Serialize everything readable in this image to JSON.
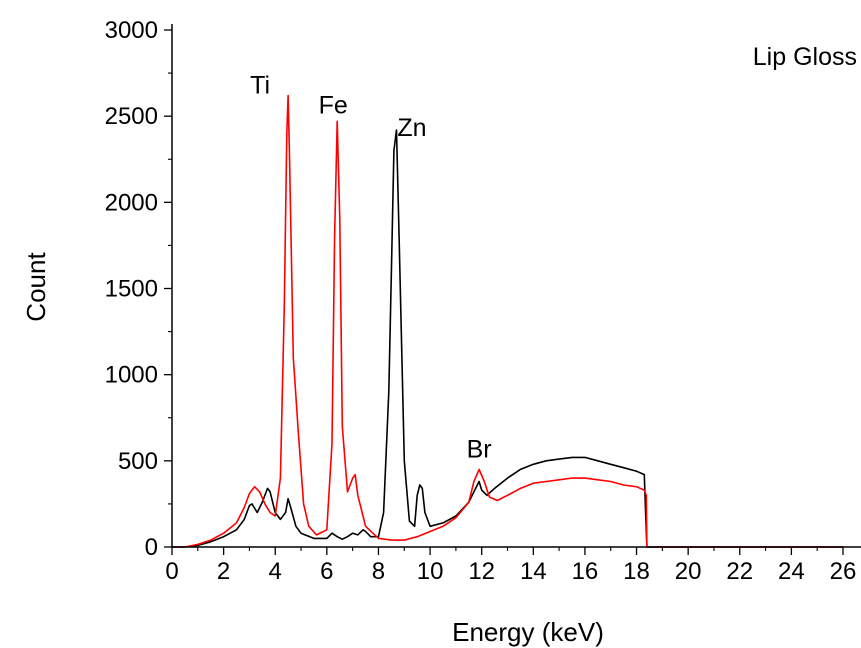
{
  "chart_data": {
    "type": "line",
    "title": "",
    "annotation_text": "Lip Gloss",
    "xlabel": "Energy (keV)",
    "ylabel": "Count",
    "xlim": [
      0,
      26
    ],
    "ylim": [
      0,
      3000
    ],
    "xticks": [
      0,
      2,
      4,
      6,
      8,
      10,
      12,
      14,
      16,
      18,
      20,
      22,
      24,
      26
    ],
    "yticks": [
      0,
      500,
      1000,
      1500,
      2000,
      2500,
      3000
    ],
    "grid": false,
    "legend": "none",
    "peak_labels": [
      {
        "text": "Ti",
        "x": 4.5,
        "y": 2620
      },
      {
        "text": "Fe",
        "x": 6.4,
        "y": 2470
      },
      {
        "text": "Zn",
        "x": 8.6,
        "y": 2420
      },
      {
        "text": "Br",
        "x": 11.9,
        "y": 450
      }
    ],
    "series": [
      {
        "color": "#000000",
        "x": [
          0,
          0.5,
          1.0,
          1.5,
          2.0,
          2.5,
          2.8,
          3.0,
          3.1,
          3.3,
          3.5,
          3.7,
          3.8,
          4.0,
          4.2,
          4.4,
          4.5,
          4.6,
          4.8,
          5.0,
          5.5,
          6.0,
          6.2,
          6.4,
          6.6,
          6.8,
          7.0,
          7.2,
          7.4,
          7.5,
          7.7,
          8.0,
          8.2,
          8.4,
          8.5,
          8.6,
          8.7,
          8.8,
          9.0,
          9.2,
          9.4,
          9.5,
          9.6,
          9.7,
          9.8,
          10.0,
          10.5,
          11.0,
          11.5,
          11.7,
          11.9,
          12.0,
          12.2,
          12.5,
          13.0,
          13.5,
          14.0,
          14.5,
          15.0,
          15.5,
          16.0,
          16.5,
          17.0,
          17.5,
          18.0,
          18.3,
          18.35,
          18.4,
          19.0,
          20.0,
          22.0,
          24.0,
          26.0
        ],
        "y": [
          0,
          0,
          10,
          30,
          60,
          100,
          160,
          240,
          250,
          200,
          260,
          340,
          320,
          200,
          160,
          200,
          280,
          230,
          120,
          80,
          50,
          50,
          80,
          60,
          45,
          60,
          80,
          70,
          100,
          90,
          60,
          60,
          200,
          900,
          1600,
          2300,
          2420,
          1800,
          500,
          150,
          120,
          300,
          360,
          340,
          200,
          120,
          140,
          180,
          260,
          320,
          380,
          330,
          300,
          340,
          400,
          450,
          480,
          500,
          510,
          520,
          520,
          500,
          480,
          460,
          440,
          420,
          200,
          0,
          0,
          0,
          0,
          0,
          0
        ]
      },
      {
        "color": "#ff0000",
        "x": [
          0,
          0.5,
          1.0,
          1.5,
          2.0,
          2.5,
          2.8,
          3.0,
          3.2,
          3.4,
          3.6,
          3.8,
          4.0,
          4.2,
          4.35,
          4.45,
          4.5,
          4.55,
          4.7,
          4.9,
          5.1,
          5.3,
          5.6,
          6.0,
          6.2,
          6.3,
          6.4,
          6.5,
          6.6,
          6.8,
          7.0,
          7.1,
          7.2,
          7.5,
          8.0,
          8.5,
          9.0,
          9.5,
          10.0,
          10.5,
          11.0,
          11.5,
          11.7,
          11.9,
          12.1,
          12.3,
          12.6,
          13.0,
          13.5,
          14.0,
          14.5,
          15.0,
          15.5,
          16.0,
          16.5,
          17.0,
          17.5,
          18.0,
          18.3,
          18.38,
          18.4,
          19.0,
          20.0,
          22.0,
          24.0,
          26.0
        ],
        "y": [
          0,
          0,
          15,
          40,
          80,
          140,
          230,
          310,
          350,
          320,
          250,
          200,
          180,
          400,
          1400,
          2400,
          2620,
          2300,
          1100,
          650,
          250,
          120,
          70,
          100,
          600,
          1800,
          2470,
          1900,
          700,
          320,
          400,
          420,
          300,
          120,
          50,
          40,
          40,
          60,
          90,
          120,
          170,
          260,
          380,
          450,
          380,
          290,
          270,
          300,
          340,
          370,
          380,
          390,
          400,
          400,
          390,
          380,
          360,
          350,
          330,
          300,
          0,
          0,
          0,
          0,
          0,
          0
        ]
      }
    ]
  }
}
